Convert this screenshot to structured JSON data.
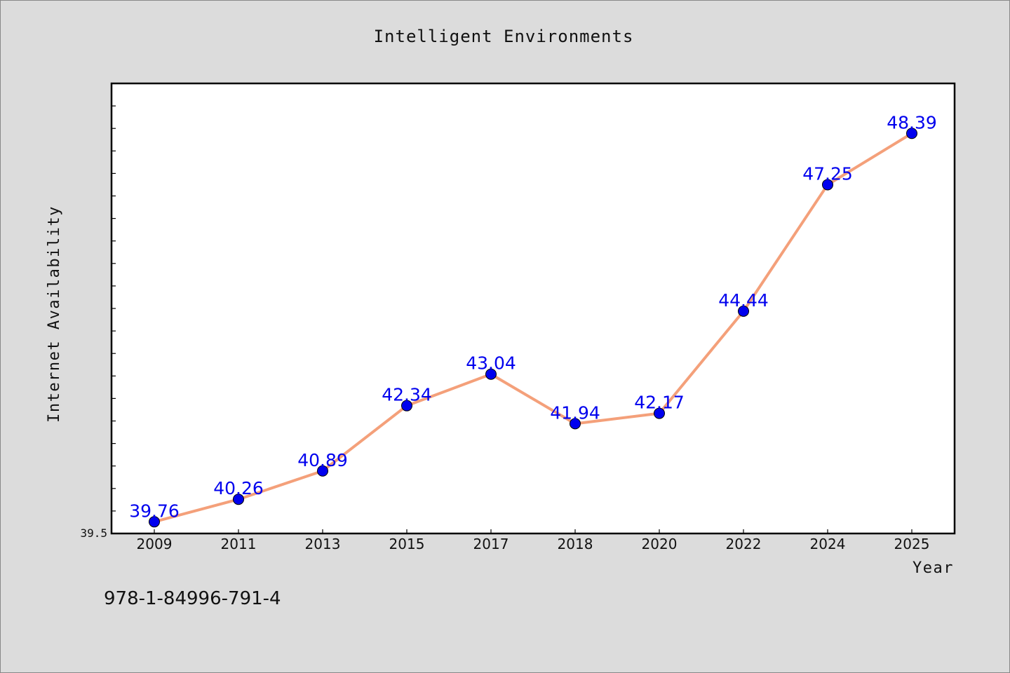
{
  "chart_data": {
    "type": "line",
    "title": "Intelligent Environments",
    "xlabel": "Year",
    "ylabel": "Internet Availability",
    "categories": [
      "2009",
      "2011",
      "2013",
      "2015",
      "2017",
      "2018",
      "2020",
      "2022",
      "2024",
      "2025"
    ],
    "series": [
      {
        "values": [
          39.76,
          40.26,
          40.89,
          42.34,
          43.04,
          41.94,
          42.17,
          44.44,
          47.25,
          48.39
        ],
        "data_labels": [
          "39.76",
          "40.26",
          "40.89",
          "42.34",
          "43.04",
          "41.94",
          "42.17",
          "44.44",
          "47.25",
          "48.39"
        ],
        "line_color": "#f4a07a",
        "marker_color": "#0000ee"
      }
    ],
    "ylim": [
      39.5,
      49.5
    ],
    "y_min_label": "39.5",
    "grid": false,
    "legend": "none"
  },
  "footer": {
    "isbn": "978-1-84996-791-4"
  }
}
